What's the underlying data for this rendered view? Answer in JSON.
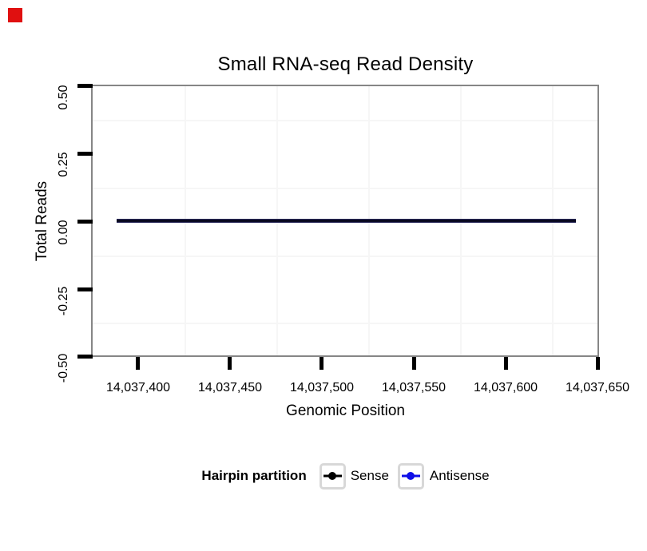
{
  "annotations": {
    "red_marker_color": "#e01010"
  },
  "chart_data": {
    "type": "line",
    "title": "Small RNA-seq Read Density",
    "xlabel": "Genomic Position",
    "ylabel": "Total Reads",
    "x_tick_labels": [
      "14,037,400",
      "14,037,450",
      "14,037,500",
      "14,037,550",
      "14,037,600",
      "14,037,650"
    ],
    "y_tick_labels": [
      "0.50",
      "0.25",
      "0.00",
      "-0.25",
      "-0.50"
    ],
    "xlim": [
      14037375,
      14037650
    ],
    "ylim": [
      -0.5,
      0.5
    ],
    "grid": "minor gridlines only, near-white on white panel",
    "panel_border_color": "#868686",
    "legend": {
      "title": "Hairpin partition",
      "position": "bottom",
      "entries": [
        {
          "label": "Sense",
          "color": "#000000"
        },
        {
          "label": "Antisense",
          "color": "#0f0fe8"
        }
      ]
    },
    "series": [
      {
        "name": "Sense",
        "color": "#000000",
        "x": [
          14037388,
          14037638
        ],
        "y": [
          0,
          0
        ]
      },
      {
        "name": "Antisense",
        "color": "#0f0fe8",
        "x": [
          14037388,
          14037638
        ],
        "y": [
          0,
          0
        ]
      }
    ]
  }
}
